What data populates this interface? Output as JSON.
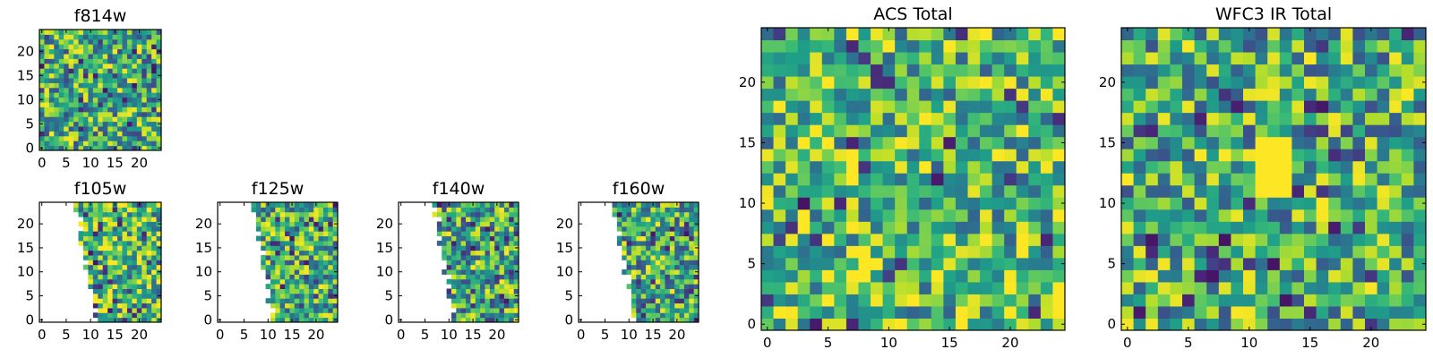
{
  "chart_data": [
    {
      "type": "heatmap",
      "title": "f814w",
      "xticks": [
        "0",
        "5",
        "10",
        "15",
        "20"
      ],
      "yticks": [
        "0",
        "5",
        "10",
        "15",
        "20"
      ],
      "xlim": [
        -0.5,
        24.5
      ],
      "ylim": [
        -0.5,
        24.5
      ],
      "grid_size": [
        25,
        25
      ],
      "colormap": "viridis",
      "coverage": "full",
      "mean_level": 0.6
    },
    {
      "type": "heatmap",
      "title": "f105w",
      "xticks": [
        "0",
        "5",
        "10",
        "15",
        "20"
      ],
      "yticks": [
        "0",
        "5",
        "10",
        "15",
        "20"
      ],
      "xlim": [
        -0.5,
        24.5
      ],
      "ylim": [
        -0.5,
        24.5
      ],
      "grid_size": [
        25,
        25
      ],
      "colormap": "viridis",
      "coverage": "partial",
      "empty_region": "left of a diagonal edge, from x≈7 at the top to x≈11 at the bottom",
      "mean_level": 0.66
    },
    {
      "type": "heatmap",
      "title": "f125w",
      "xticks": [
        "0",
        "5",
        "10",
        "15",
        "20"
      ],
      "yticks": [
        "0",
        "5",
        "10",
        "15",
        "20"
      ],
      "xlim": [
        -0.5,
        24.5
      ],
      "ylim": [
        -0.5,
        24.5
      ],
      "grid_size": [
        25,
        25
      ],
      "colormap": "viridis",
      "coverage": "partial",
      "empty_region": "left of a diagonal edge, from x≈7 at the top to x≈11 at the bottom",
      "mean_level": 0.62
    },
    {
      "type": "heatmap",
      "title": "f140w",
      "xticks": [
        "0",
        "5",
        "10",
        "15",
        "20"
      ],
      "yticks": [
        "0",
        "5",
        "10",
        "15",
        "20"
      ],
      "xlim": [
        -0.5,
        24.5
      ],
      "ylim": [
        -0.5,
        24.5
      ],
      "grid_size": [
        25,
        25
      ],
      "colormap": "viridis",
      "coverage": "partial",
      "empty_region": "left of a diagonal edge, from x≈7 at the top to x≈11 at the bottom",
      "mean_level": 0.58
    },
    {
      "type": "heatmap",
      "title": "f160w",
      "xticks": [
        "0",
        "5",
        "10",
        "15",
        "20"
      ],
      "yticks": [
        "0",
        "5",
        "10",
        "15",
        "20"
      ],
      "xlim": [
        -0.5,
        24.5
      ],
      "ylim": [
        -0.5,
        24.5
      ],
      "grid_size": [
        25,
        25
      ],
      "colormap": "viridis",
      "coverage": "partial",
      "empty_region": "left of a diagonal edge, from x≈7 at the top to x≈11 at the bottom",
      "mean_level": 0.6
    },
    {
      "type": "heatmap",
      "title": "ACS Total",
      "xticks": [
        "0",
        "5",
        "10",
        "15",
        "20"
      ],
      "yticks": [
        "0",
        "5",
        "10",
        "15",
        "20"
      ],
      "xlim": [
        -0.5,
        24.5
      ],
      "ylim": [
        -0.5,
        24.5
      ],
      "grid_size": [
        25,
        25
      ],
      "colormap": "viridis",
      "coverage": "full",
      "mean_level": 0.68
    },
    {
      "type": "heatmap",
      "title": "WFC3 IR Total",
      "xticks": [
        "0",
        "5",
        "10",
        "15",
        "20"
      ],
      "yticks": [
        "0",
        "5",
        "10",
        "15",
        "20"
      ],
      "xlim": [
        -0.5,
        24.5
      ],
      "ylim": [
        -0.5,
        24.5
      ],
      "grid_size": [
        25,
        25
      ],
      "colormap": "viridis",
      "coverage": "full",
      "mean_level": 0.62,
      "annotations": [
        "bright yellow block spanning x≈11–13, y≈11–15"
      ]
    }
  ]
}
